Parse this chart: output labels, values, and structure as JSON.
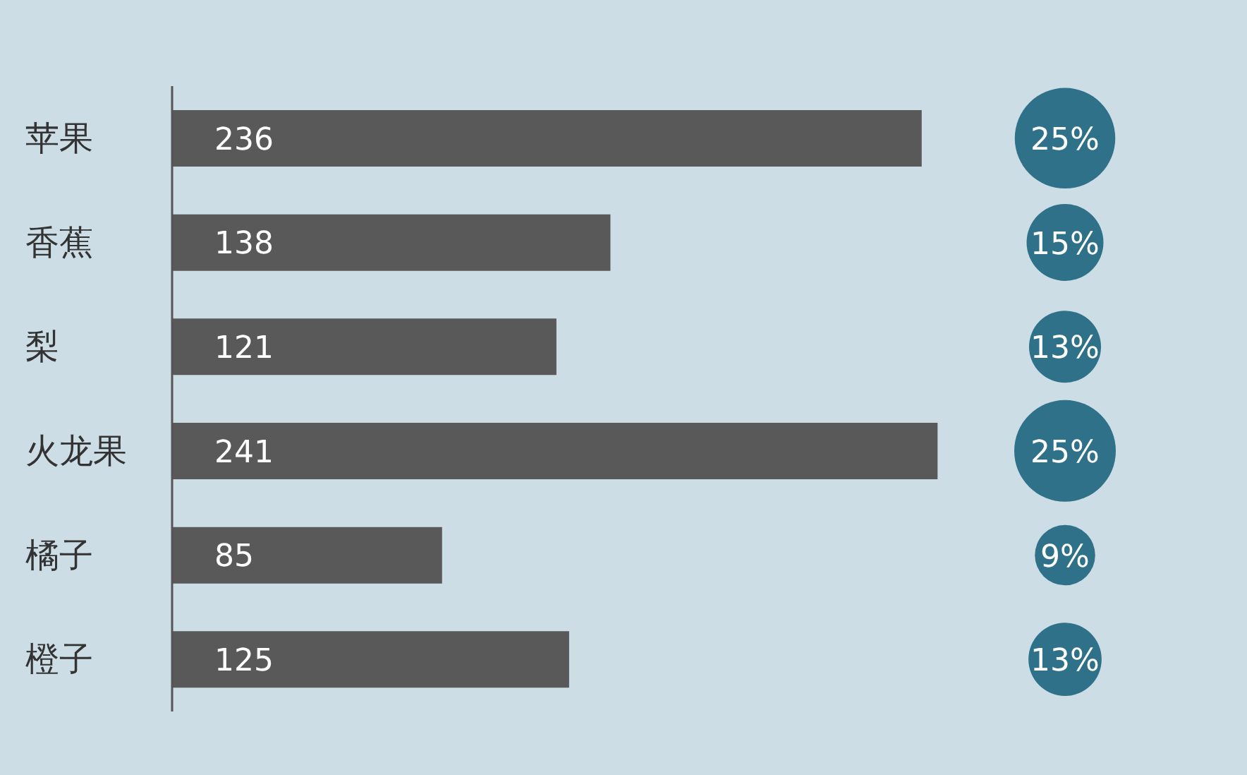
{
  "chart_data": {
    "type": "bar",
    "orientation": "horizontal",
    "categories": [
      "苹果",
      "香蕉",
      "梨",
      "火龙果",
      "橘子",
      "橙子"
    ],
    "data_labels": true,
    "color": "#595959",
    "values": [
      236,
      138,
      121,
      241,
      85,
      125
    ],
    "annotations": [
      "25%",
      "15%",
      "13%",
      "25%",
      "9%",
      "13%"
    ]
  }
}
